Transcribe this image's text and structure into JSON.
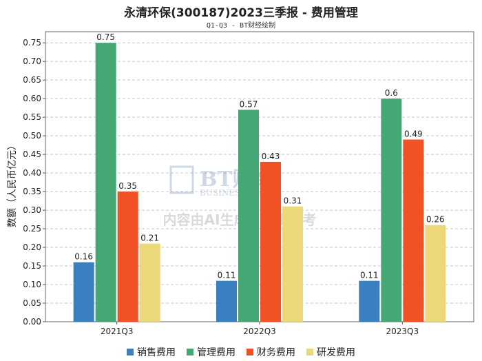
{
  "title": "永清环保(300187)2023三季报 - 费用管理",
  "subtitle": "Q1-Q3 - BT财经绘制",
  "watermark": {
    "logo_text": "BT财经",
    "logo_sub": "BUSINESSTIMES",
    "notice": "内容由AI生成，仅供参考"
  },
  "colors": {
    "销售费用": "#3a80c0",
    "管理费用": "#45a874",
    "财务费用": "#f05226",
    "研发费用": "#ecd77a"
  },
  "chart_data": {
    "type": "bar",
    "title": "永清环保(300187)2023三季报 - 费用管理",
    "subtitle": "Q1-Q3 - BT财经绘制",
    "xlabel": "",
    "ylabel": "数额（人民币亿元）",
    "ylim": [
      0,
      0.78
    ],
    "yticks": [
      "0.00",
      "0.05",
      "0.10",
      "0.15",
      "0.20",
      "0.25",
      "0.30",
      "0.35",
      "0.40",
      "0.45",
      "0.50",
      "0.55",
      "0.60",
      "0.65",
      "0.70",
      "0.75"
    ],
    "categories": [
      "2021Q3",
      "2022Q3",
      "2023Q3"
    ],
    "series": [
      {
        "name": "销售费用",
        "values": [
          0.16,
          0.11,
          0.11
        ],
        "labels": [
          "0.16",
          "0.11",
          "0.11"
        ]
      },
      {
        "name": "管理费用",
        "values": [
          0.75,
          0.57,
          0.6
        ],
        "labels": [
          "0.75",
          "0.57",
          "0.6"
        ]
      },
      {
        "name": "财务费用",
        "values": [
          0.35,
          0.43,
          0.49
        ],
        "labels": [
          "0.35",
          "0.43",
          "0.49"
        ]
      },
      {
        "name": "研发费用",
        "values": [
          0.21,
          0.31,
          0.26
        ],
        "labels": [
          "0.21",
          "0.31",
          "0.26"
        ]
      }
    ],
    "grid": true,
    "legend": "bottom"
  }
}
